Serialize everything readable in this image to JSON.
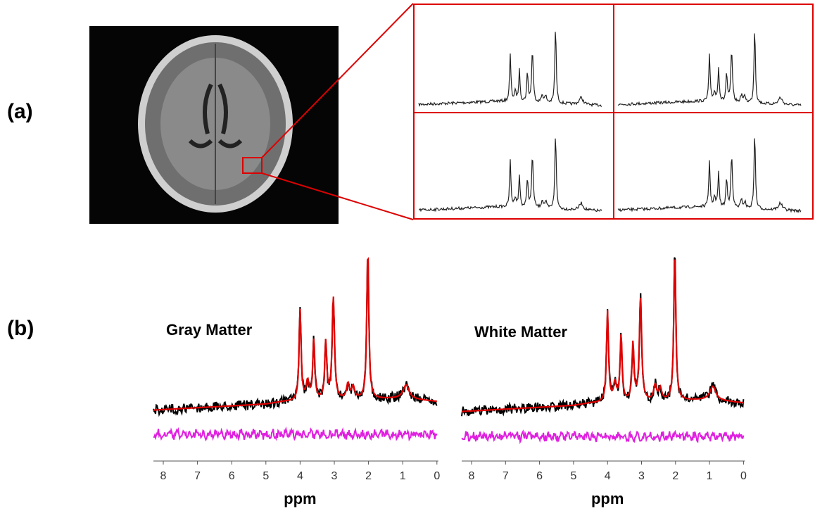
{
  "panel_a": {
    "label": "(a)"
  },
  "panel_b": {
    "label": "(b)",
    "spectra": [
      {
        "title": "Gray Matter",
        "xlabel": "ppm",
        "ticks": [
          8,
          7,
          6,
          5,
          4,
          3,
          2,
          1,
          0
        ]
      },
      {
        "title": "White Matter",
        "xlabel": "ppm",
        "ticks": [
          8,
          7,
          6,
          5,
          4,
          3,
          2,
          1,
          0
        ]
      }
    ]
  }
}
